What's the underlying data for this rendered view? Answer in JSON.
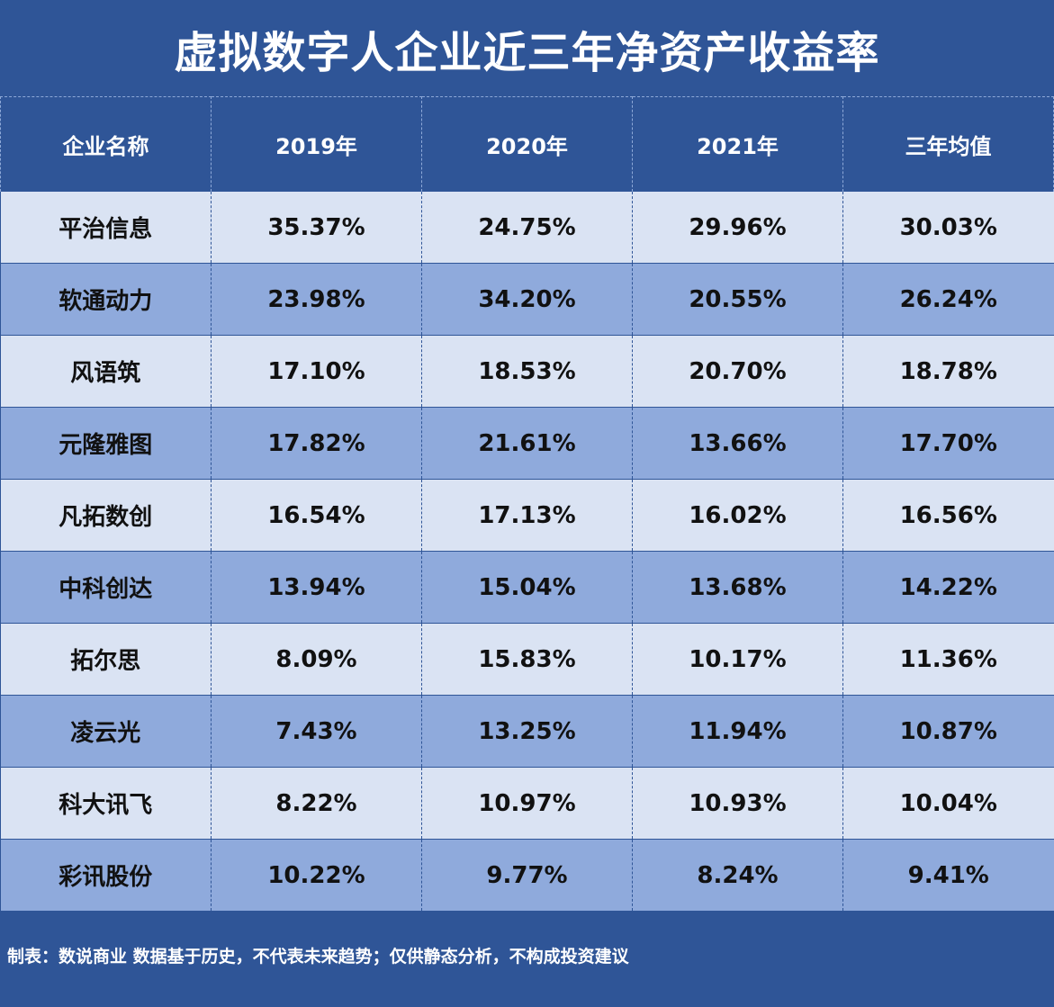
{
  "title": "虚拟数字人企业近三年净资产收益率",
  "colors": {
    "header_bg": "#2f5597",
    "row_light": "#dae3f3",
    "row_dark": "#8faadc"
  },
  "chart_data": {
    "type": "table",
    "title": "虚拟数字人企业近三年净资产收益率",
    "columns": [
      "企业名称",
      "2019年",
      "2020年",
      "2021年",
      "三年均值"
    ],
    "rows": [
      [
        "平治信息",
        "35.37%",
        "24.75%",
        "29.96%",
        "30.03%"
      ],
      [
        "软通动力",
        "23.98%",
        "34.20%",
        "20.55%",
        "26.24%"
      ],
      [
        "风语筑",
        "17.10%",
        "18.53%",
        "20.70%",
        "18.78%"
      ],
      [
        "元隆雅图",
        "17.82%",
        "21.61%",
        "13.66%",
        "17.70%"
      ],
      [
        "凡拓数创",
        "16.54%",
        "17.13%",
        "16.02%",
        "16.56%"
      ],
      [
        "中科创达",
        "13.94%",
        "15.04%",
        "13.68%",
        "14.22%"
      ],
      [
        "拓尔思",
        "8.09%",
        "15.83%",
        "10.17%",
        "11.36%"
      ],
      [
        "凌云光",
        "7.43%",
        "13.25%",
        "11.94%",
        "10.87%"
      ],
      [
        "科大讯飞",
        "8.22%",
        "10.97%",
        "10.93%",
        "10.04%"
      ],
      [
        "彩讯股份",
        "10.22%",
        "9.77%",
        "8.24%",
        "9.41%"
      ]
    ]
  },
  "footer": "制表：数说商业 数据基于历史，不代表未来趋势；仅供静态分析，不构成投资建议"
}
